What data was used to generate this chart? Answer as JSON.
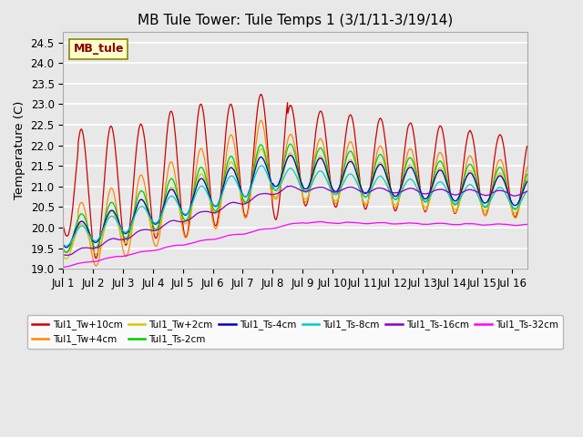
{
  "title": "MB Tule Tower: Tule Temps 1 (3/1/11-3/19/14)",
  "ylabel": "Temperature (C)",
  "ylim": [
    19.0,
    24.75
  ],
  "xlim": [
    0,
    15.5
  ],
  "xtick_labels": [
    "Jul 1",
    "Jul 2",
    "Jul 3",
    "Jul 4",
    "Jul 5",
    "Jul 6",
    "Jul 7",
    "Jul 8",
    "Jul 9",
    "Jul 10",
    "Jul 11",
    "Jul 12",
    "Jul 13",
    "Jul 14",
    "Jul 15",
    "Jul 16"
  ],
  "xtick_positions": [
    0,
    1,
    2,
    3,
    4,
    5,
    6,
    7,
    8,
    9,
    10,
    11,
    12,
    13,
    14,
    15
  ],
  "ytick_labels": [
    "19.0",
    "19.5",
    "20.0",
    "20.5",
    "21.0",
    "21.5",
    "22.0",
    "22.5",
    "23.0",
    "23.5",
    "24.0",
    "24.5"
  ],
  "ytick_values": [
    19.0,
    19.5,
    20.0,
    20.5,
    21.0,
    21.5,
    22.0,
    22.5,
    23.0,
    23.5,
    24.0,
    24.5
  ],
  "series_colors": {
    "Tul1_Tw+10cm": "#cc0000",
    "Tul1_Tw+4cm": "#ff8800",
    "Tul1_Tw+2cm": "#cccc00",
    "Tul1_Ts-2cm": "#00cc00",
    "Tul1_Ts-4cm": "#0000cc",
    "Tul1_Ts-8cm": "#00cccc",
    "Tul1_Ts-16cm": "#8800cc",
    "Tul1_Ts-32cm": "#ff00ff"
  },
  "background_color": "#e8e8e8",
  "plot_bg_color": "#e8e8e8",
  "grid_color": "#ffffff",
  "title_fontsize": 11,
  "annotation_text": "MB_tule",
  "annotation_text_color": "#880000",
  "annotation_box_color": "#ffffcc",
  "annotation_box_edge": "#888800"
}
